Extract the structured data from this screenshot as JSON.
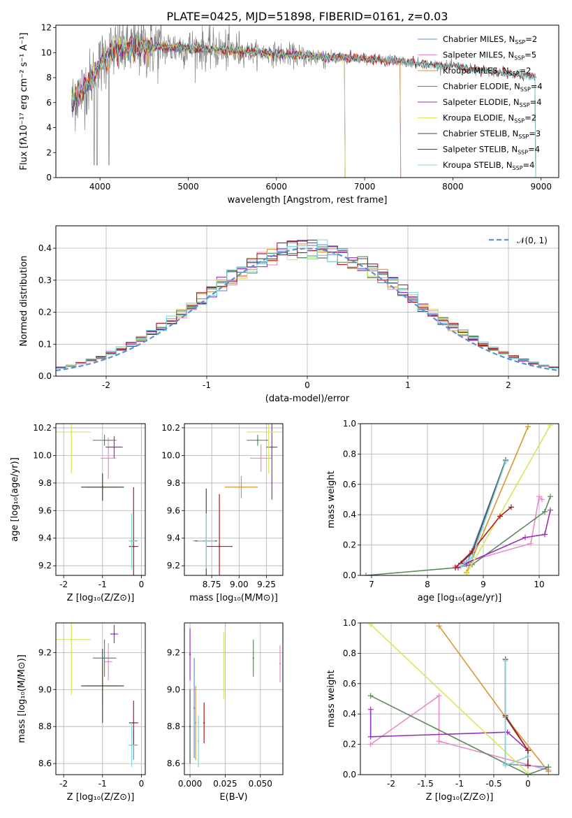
{
  "figure_title": "PLATE=0425, MJD=51898, FIBERID=0161, z=0.03",
  "colors": {
    "Chabrier MILES": "#6c8ed4",
    "Salpeter MILES": "#e88cc8",
    "Kroupa MILES": "#d9962f",
    "Chabrier ELODIE": "#5c8c5c",
    "Salpeter ELODIE": "#9b2fb8",
    "Kroupa ELODIE": "#d4e85a",
    "Chabrier STELIB": "#4a4a4a",
    "Salpeter STELIB": "#b01c1c",
    "Kroupa STELIB": "#7fd8d8",
    "data": "#808080",
    "normal": "#5b8fd6"
  },
  "chart_data": [
    {
      "id": "spectrum",
      "type": "line",
      "xlabel": "wavelength [Angstrom, rest frame]",
      "ylabel": "Flux [fλ10⁻¹⁷ erg cm⁻² s⁻¹ A⁻¹]",
      "xlim": [
        3500,
        9200
      ],
      "ylim": [
        0,
        12.2
      ],
      "xticks": [
        4000,
        5000,
        6000,
        7000,
        8000,
        9000
      ],
      "yticks": [
        0,
        2,
        4,
        6,
        8,
        10,
        12
      ],
      "legend_position": "top-right",
      "legend": [
        {
          "name": "Chabrier MILES",
          "label": "Chabrier MILES, N",
          "sub": "SSP",
          "suffix": "=2"
        },
        {
          "name": "Salpeter MILES",
          "label": "Salpeter MILES, N",
          "sub": "SSP",
          "suffix": "=5"
        },
        {
          "name": "Kroupa MILES",
          "label": "Kroupa MILES, N",
          "sub": "SSP",
          "suffix": "=2"
        },
        {
          "name": "Chabrier ELODIE",
          "label": "Chabrier ELODIE, N",
          "sub": "SSP",
          "suffix": "=4"
        },
        {
          "name": "Salpeter ELODIE",
          "label": "Salpeter ELODIE, N",
          "sub": "SSP",
          "suffix": "=4"
        },
        {
          "name": "Kroupa ELODIE",
          "label": "Kroupa ELODIE, N",
          "sub": "SSP",
          "suffix": "=2"
        },
        {
          "name": "Chabrier STELIB",
          "label": "Chabrier STELIB, N",
          "sub": "SSP",
          "suffix": "=3"
        },
        {
          "name": "Salpeter STELIB",
          "label": "Salpeter STELIB, N",
          "sub": "SSP",
          "suffix": "=4"
        },
        {
          "name": "Kroupa STELIB",
          "label": "Kroupa STELIB, N",
          "sub": "SSP",
          "suffix": "=4"
        }
      ],
      "continuum": {
        "x": [
          3680,
          3750,
          3850,
          3950,
          4050,
          4150,
          4250,
          4400,
          4600,
          4800,
          5000,
          5200,
          5400,
          5600,
          5800,
          6000,
          6200,
          6400,
          6600,
          6800,
          7000,
          7200,
          7400,
          7600,
          7800,
          8000,
          8200,
          8400,
          8600,
          8800,
          8900
        ],
        "y": [
          6.0,
          6.6,
          7.4,
          8.3,
          9.6,
          10.2,
          10.3,
          10.4,
          10.5,
          10.4,
          10.4,
          10.3,
          10.2,
          10.1,
          10.0,
          9.9,
          9.8,
          9.7,
          9.6,
          9.6,
          9.5,
          9.4,
          9.3,
          9.2,
          9.0,
          8.9,
          8.7,
          8.5,
          8.3,
          8.2,
          8.1
        ]
      },
      "model_ranges": {
        "Chabrier MILES": [
          3680,
          7420
        ],
        "Salpeter MILES": [
          3680,
          7420
        ],
        "Kroupa MILES": [
          3680,
          7420
        ],
        "Chabrier ELODIE": [
          3680,
          6790
        ],
        "Salpeter ELODIE": [
          3680,
          6790
        ],
        "Kroupa ELODIE": [
          3680,
          6790
        ],
        "Chabrier STELIB": [
          3680,
          8950
        ],
        "Salpeter STELIB": [
          3680,
          8950
        ],
        "Kroupa STELIB": [
          3680,
          8950
        ]
      },
      "data_range": [
        3680,
        8950
      ]
    },
    {
      "id": "residual-histogram",
      "type": "histogram",
      "xlabel": "(data-model)/error",
      "ylabel": "Normed distribution",
      "xlim": [
        -2.5,
        2.5
      ],
      "ylim": [
        0,
        0.47
      ],
      "xticks": [
        -2,
        -1,
        0,
        1,
        2
      ],
      "yticks": [
        0.0,
        0.1,
        0.2,
        0.3,
        0.4
      ],
      "legend_position": "top-right",
      "legend_label": "𝒩(0, 1)",
      "bin_width": 0.1,
      "bin_start": -2.5,
      "reference_curve": "normal pdf, mean 0, sigma 1"
    },
    {
      "id": "age-vs-Z",
      "type": "scatter",
      "xlabel": "Z [log₁₀(Z/Z⊙)]",
      "ylabel": "age  [log₁₀(age/yr)]",
      "xlim": [
        -2.2,
        0.1
      ],
      "ylim": [
        9.13,
        10.23
      ],
      "xticks": [
        -2,
        -1,
        0
      ],
      "yticks": [
        9.2,
        9.4,
        9.6,
        9.8,
        10.0,
        10.2
      ],
      "points": [
        {
          "model": "Chabrier MILES",
          "x": -0.2,
          "y": 9.38,
          "xerr": 0.1,
          "yerr": 0.0
        },
        {
          "model": "Salpeter MILES",
          "x": -0.85,
          "y": 9.98,
          "xerr": 0.2,
          "yerr": 0.15
        },
        {
          "model": "Kroupa MILES",
          "x": -1.0,
          "y": 9.77,
          "xerr": 0.4,
          "yerr": 0.08
        },
        {
          "model": "Chabrier ELODIE",
          "x": -0.95,
          "y": 10.11,
          "xerr": 0.3,
          "yerr": 0.04
        },
        {
          "model": "Salpeter ELODIE",
          "x": -0.7,
          "y": 10.06,
          "xerr": 0.22,
          "yerr": 0.08
        },
        {
          "model": "Kroupa ELODIE",
          "x": -1.8,
          "y": 10.17,
          "xerr": 0.5,
          "yerr": 0.3
        },
        {
          "model": "Chabrier STELIB",
          "x": -1.0,
          "y": 9.77,
          "xerr": 0.55,
          "yerr": 0.1
        },
        {
          "model": "Salpeter STELIB",
          "x": -0.2,
          "y": 9.34,
          "xerr": 0.12,
          "yerr": 0.43
        },
        {
          "model": "Kroupa STELIB",
          "x": -0.25,
          "y": 9.38,
          "xerr": 0.08,
          "yerr": 0.2
        }
      ]
    },
    {
      "id": "age-vs-mass",
      "type": "scatter",
      "xlabel": "mass [log₁₀(M/M⊙)]",
      "ylabel": "",
      "xlim": [
        8.5,
        9.4
      ],
      "ylim": [
        9.13,
        10.23
      ],
      "xticks": [
        8.75,
        9.0,
        9.25
      ],
      "yticks": [
        9.2,
        9.4,
        9.6,
        9.8,
        10.0,
        10.2
      ],
      "points": [
        {
          "model": "Chabrier MILES",
          "x": 8.68,
          "y": 9.38,
          "xerr": 0.1,
          "yerr": 0.0
        },
        {
          "model": "Salpeter MILES",
          "x": 9.2,
          "y": 9.98,
          "xerr": 0.1,
          "yerr": 0.1
        },
        {
          "model": "Kroupa MILES",
          "x": 9.02,
          "y": 9.77,
          "xerr": 0.15,
          "yerr": 0.08
        },
        {
          "model": "Chabrier ELODIE",
          "x": 9.17,
          "y": 10.11,
          "xerr": 0.1,
          "yerr": 0.04
        },
        {
          "model": "Salpeter ELODIE",
          "x": 9.3,
          "y": 10.06,
          "xerr": 0.05,
          "yerr": 0.38
        },
        {
          "model": "Kroupa ELODIE",
          "x": 9.27,
          "y": 10.17,
          "xerr": 0.2,
          "yerr": 0.3
        },
        {
          "model": "Chabrier STELIB",
          "x": 8.7,
          "y": 9.38,
          "xerr": 0.1,
          "yerr": 0.38
        },
        {
          "model": "Salpeter STELIB",
          "x": 8.82,
          "y": 9.34,
          "xerr": 0.12,
          "yerr": 0.38
        },
        {
          "model": "Kroupa STELIB",
          "x": 8.7,
          "y": 9.38,
          "xerr": 0.08,
          "yerr": 0.2
        }
      ]
    },
    {
      "id": "mass-weight-vs-age",
      "type": "line",
      "xlabel": "age  [log₁₀(age/yr)]",
      "ylabel": "mass weight",
      "xlim": [
        6.8,
        10.35
      ],
      "ylim": [
        0,
        1.0
      ],
      "xticks": [
        7,
        8,
        9,
        10
      ],
      "yticks": [
        0.0,
        0.2,
        0.4,
        0.6,
        0.8,
        1.0
      ],
      "series": [
        {
          "model": "Chabrier MILES",
          "x": [
            8.7,
            9.4
          ],
          "y": [
            0.07,
            0.76
          ]
        },
        {
          "model": "Salpeter MILES",
          "x": [
            8.5,
            8.7,
            9.85,
            10.0,
            10.05
          ],
          "y": [
            0.06,
            0.09,
            0.21,
            0.52,
            0.5
          ]
        },
        {
          "model": "Kroupa MILES",
          "x": [
            8.7,
            9.8
          ],
          "y": [
            0.02,
            0.98
          ]
        },
        {
          "model": "Chabrier ELODIE",
          "x": [
            6.9,
            8.5,
            8.8,
            10.1,
            10.2
          ],
          "y": [
            0.0,
            0.05,
            0.07,
            0.42,
            0.52
          ]
        },
        {
          "model": "Salpeter ELODIE",
          "x": [
            8.55,
            8.7,
            9.75,
            10.1,
            10.2
          ],
          "y": [
            0.05,
            0.08,
            0.25,
            0.27,
            0.43
          ]
        },
        {
          "model": "Kroupa ELODIE",
          "x": [
            8.7,
            10.2
          ],
          "y": [
            0.01,
            0.99
          ]
        },
        {
          "model": "Chabrier STELIB",
          "x": [
            8.6,
            8.8,
            9.4
          ],
          "y": [
            0.08,
            0.15,
            0.76
          ]
        },
        {
          "model": "Salpeter STELIB",
          "x": [
            8.5,
            8.8,
            9.3,
            9.5
          ],
          "y": [
            0.05,
            0.16,
            0.39,
            0.45
          ]
        },
        {
          "model": "Kroupa STELIB",
          "x": [
            8.6,
            8.8,
            9.4
          ],
          "y": [
            0.06,
            0.12,
            0.75
          ]
        }
      ]
    },
    {
      "id": "mass-vs-Z",
      "type": "scatter",
      "xlabel": "Z [log₁₀(Z/Z⊙)]",
      "ylabel": "mass [log₁₀(M/M⊙)]",
      "xlim": [
        -2.2,
        0.1
      ],
      "ylim": [
        8.54,
        9.36
      ],
      "xticks": [
        -2,
        -1,
        0
      ],
      "yticks": [
        8.6,
        8.8,
        9.0,
        9.2
      ],
      "points": [
        {
          "model": "Chabrier MILES",
          "x": -0.2,
          "y": 8.7,
          "xerr": 0.1,
          "yerr": 0.08
        },
        {
          "model": "Salpeter MILES",
          "x": -0.85,
          "y": 9.15,
          "xerr": 0.1,
          "yerr": 0.1
        },
        {
          "model": "Kroupa MILES",
          "x": -1.0,
          "y": 9.02,
          "xerr": 0.42,
          "yerr": 0.1
        },
        {
          "model": "Chabrier ELODIE",
          "x": -0.95,
          "y": 9.17,
          "xerr": 0.3,
          "yerr": 0.1
        },
        {
          "model": "Salpeter ELODIE",
          "x": -0.7,
          "y": 9.3,
          "xerr": 0.1,
          "yerr": 0.05
        },
        {
          "model": "Kroupa ELODIE",
          "x": -1.8,
          "y": 9.27,
          "xerr": 0.5,
          "yerr": 0.3
        },
        {
          "model": "Chabrier STELIB",
          "x": -1.0,
          "y": 9.02,
          "xerr": 0.55,
          "yerr": 0.2
        },
        {
          "model": "Salpeter STELIB",
          "x": -0.2,
          "y": 8.82,
          "xerr": 0.12,
          "yerr": 0.12
        },
        {
          "model": "Kroupa STELIB",
          "x": -0.25,
          "y": 8.7,
          "xerr": 0.08,
          "yerr": 0.12
        }
      ]
    },
    {
      "id": "mass-vs-EBV",
      "type": "scatter",
      "xlabel": "E(B-V)",
      "ylabel": "",
      "xlim": [
        -0.004,
        0.066
      ],
      "ylim": [
        8.54,
        9.36
      ],
      "xticks": [
        0.0,
        0.025,
        0.05
      ],
      "yticks": [
        8.6,
        8.8,
        9.0,
        9.2
      ],
      "points": [
        {
          "model": "Chabrier MILES",
          "x": 0.003,
          "y": 8.9,
          "xerr": 0,
          "yerr": 0.27
        },
        {
          "model": "Salpeter MILES",
          "x": 0.064,
          "y": 9.14,
          "xerr": 0,
          "yerr": 0.1
        },
        {
          "model": "Kroupa MILES",
          "x": 0.004,
          "y": 8.82,
          "xerr": 0,
          "yerr": 0.2
        },
        {
          "model": "Chabrier ELODIE",
          "x": 0.045,
          "y": 9.17,
          "xerr": 0,
          "yerr": 0.1
        },
        {
          "model": "Salpeter ELODIE",
          "x": 0.0,
          "y": 9.19,
          "xerr": 0,
          "yerr": 0.14
        },
        {
          "model": "Kroupa ELODIE",
          "x": 0.024,
          "y": 9.13,
          "xerr": 0,
          "yerr": 0.18
        },
        {
          "model": "Chabrier STELIB",
          "x": 0.0,
          "y": 8.8,
          "xerr": 0,
          "yerr": 0.2
        },
        {
          "model": "Salpeter STELIB",
          "x": 0.01,
          "y": 8.82,
          "xerr": 0,
          "yerr": 0.11
        },
        {
          "model": "Kroupa STELIB",
          "x": 0.006,
          "y": 8.72,
          "xerr": 0,
          "yerr": 0.14
        }
      ]
    },
    {
      "id": "mass-weight-vs-Z",
      "type": "line",
      "xlabel": "Z [log₁₀(Z/Z⊙)]",
      "ylabel": "mass weight",
      "xlim": [
        -2.45,
        0.45
      ],
      "ylim": [
        0,
        1.0
      ],
      "xticks": [
        -2.0,
        -1.5,
        -1.0,
        -0.5,
        0.0
      ],
      "yticks": [
        0.0,
        0.2,
        0.4,
        0.6,
        0.8,
        1.0
      ],
      "series": [
        {
          "model": "Chabrier MILES",
          "x": [
            -0.33,
            -0.33,
            0.3
          ],
          "y": [
            0.76,
            0.07,
            0.05
          ]
        },
        {
          "model": "Salpeter MILES",
          "x": [
            -2.3,
            -1.3,
            -1.3,
            0.3
          ],
          "y": [
            0.2,
            0.52,
            0.22,
            0.03
          ]
        },
        {
          "model": "Kroupa MILES",
          "x": [
            -1.3,
            -0.33,
            0.3
          ],
          "y": [
            0.98,
            0.38,
            0.02
          ]
        },
        {
          "model": "Chabrier ELODIE",
          "x": [
            -2.3,
            0.0,
            0.3
          ],
          "y": [
            0.52,
            0.0,
            0.05
          ]
        },
        {
          "model": "Salpeter ELODIE",
          "x": [
            -2.3,
            -2.3,
            -0.3,
            0.0
          ],
          "y": [
            0.43,
            0.25,
            0.28,
            0.16
          ]
        },
        {
          "model": "Kroupa ELODIE",
          "x": [
            -2.3,
            0.0
          ],
          "y": [
            0.99,
            0.01
          ]
        },
        {
          "model": "Chabrier STELIB",
          "x": [
            -0.33,
            -0.33,
            0.0
          ],
          "y": [
            0.76,
            0.38,
            0.16
          ]
        },
        {
          "model": "Salpeter STELIB",
          "x": [
            -0.33,
            0.0,
            0.0
          ],
          "y": [
            0.39,
            0.16,
            0.06
          ]
        },
        {
          "model": "Kroupa STELIB",
          "x": [
            -0.33,
            -0.33,
            0.0
          ],
          "y": [
            0.75,
            0.06,
            0.12
          ]
        }
      ]
    }
  ]
}
